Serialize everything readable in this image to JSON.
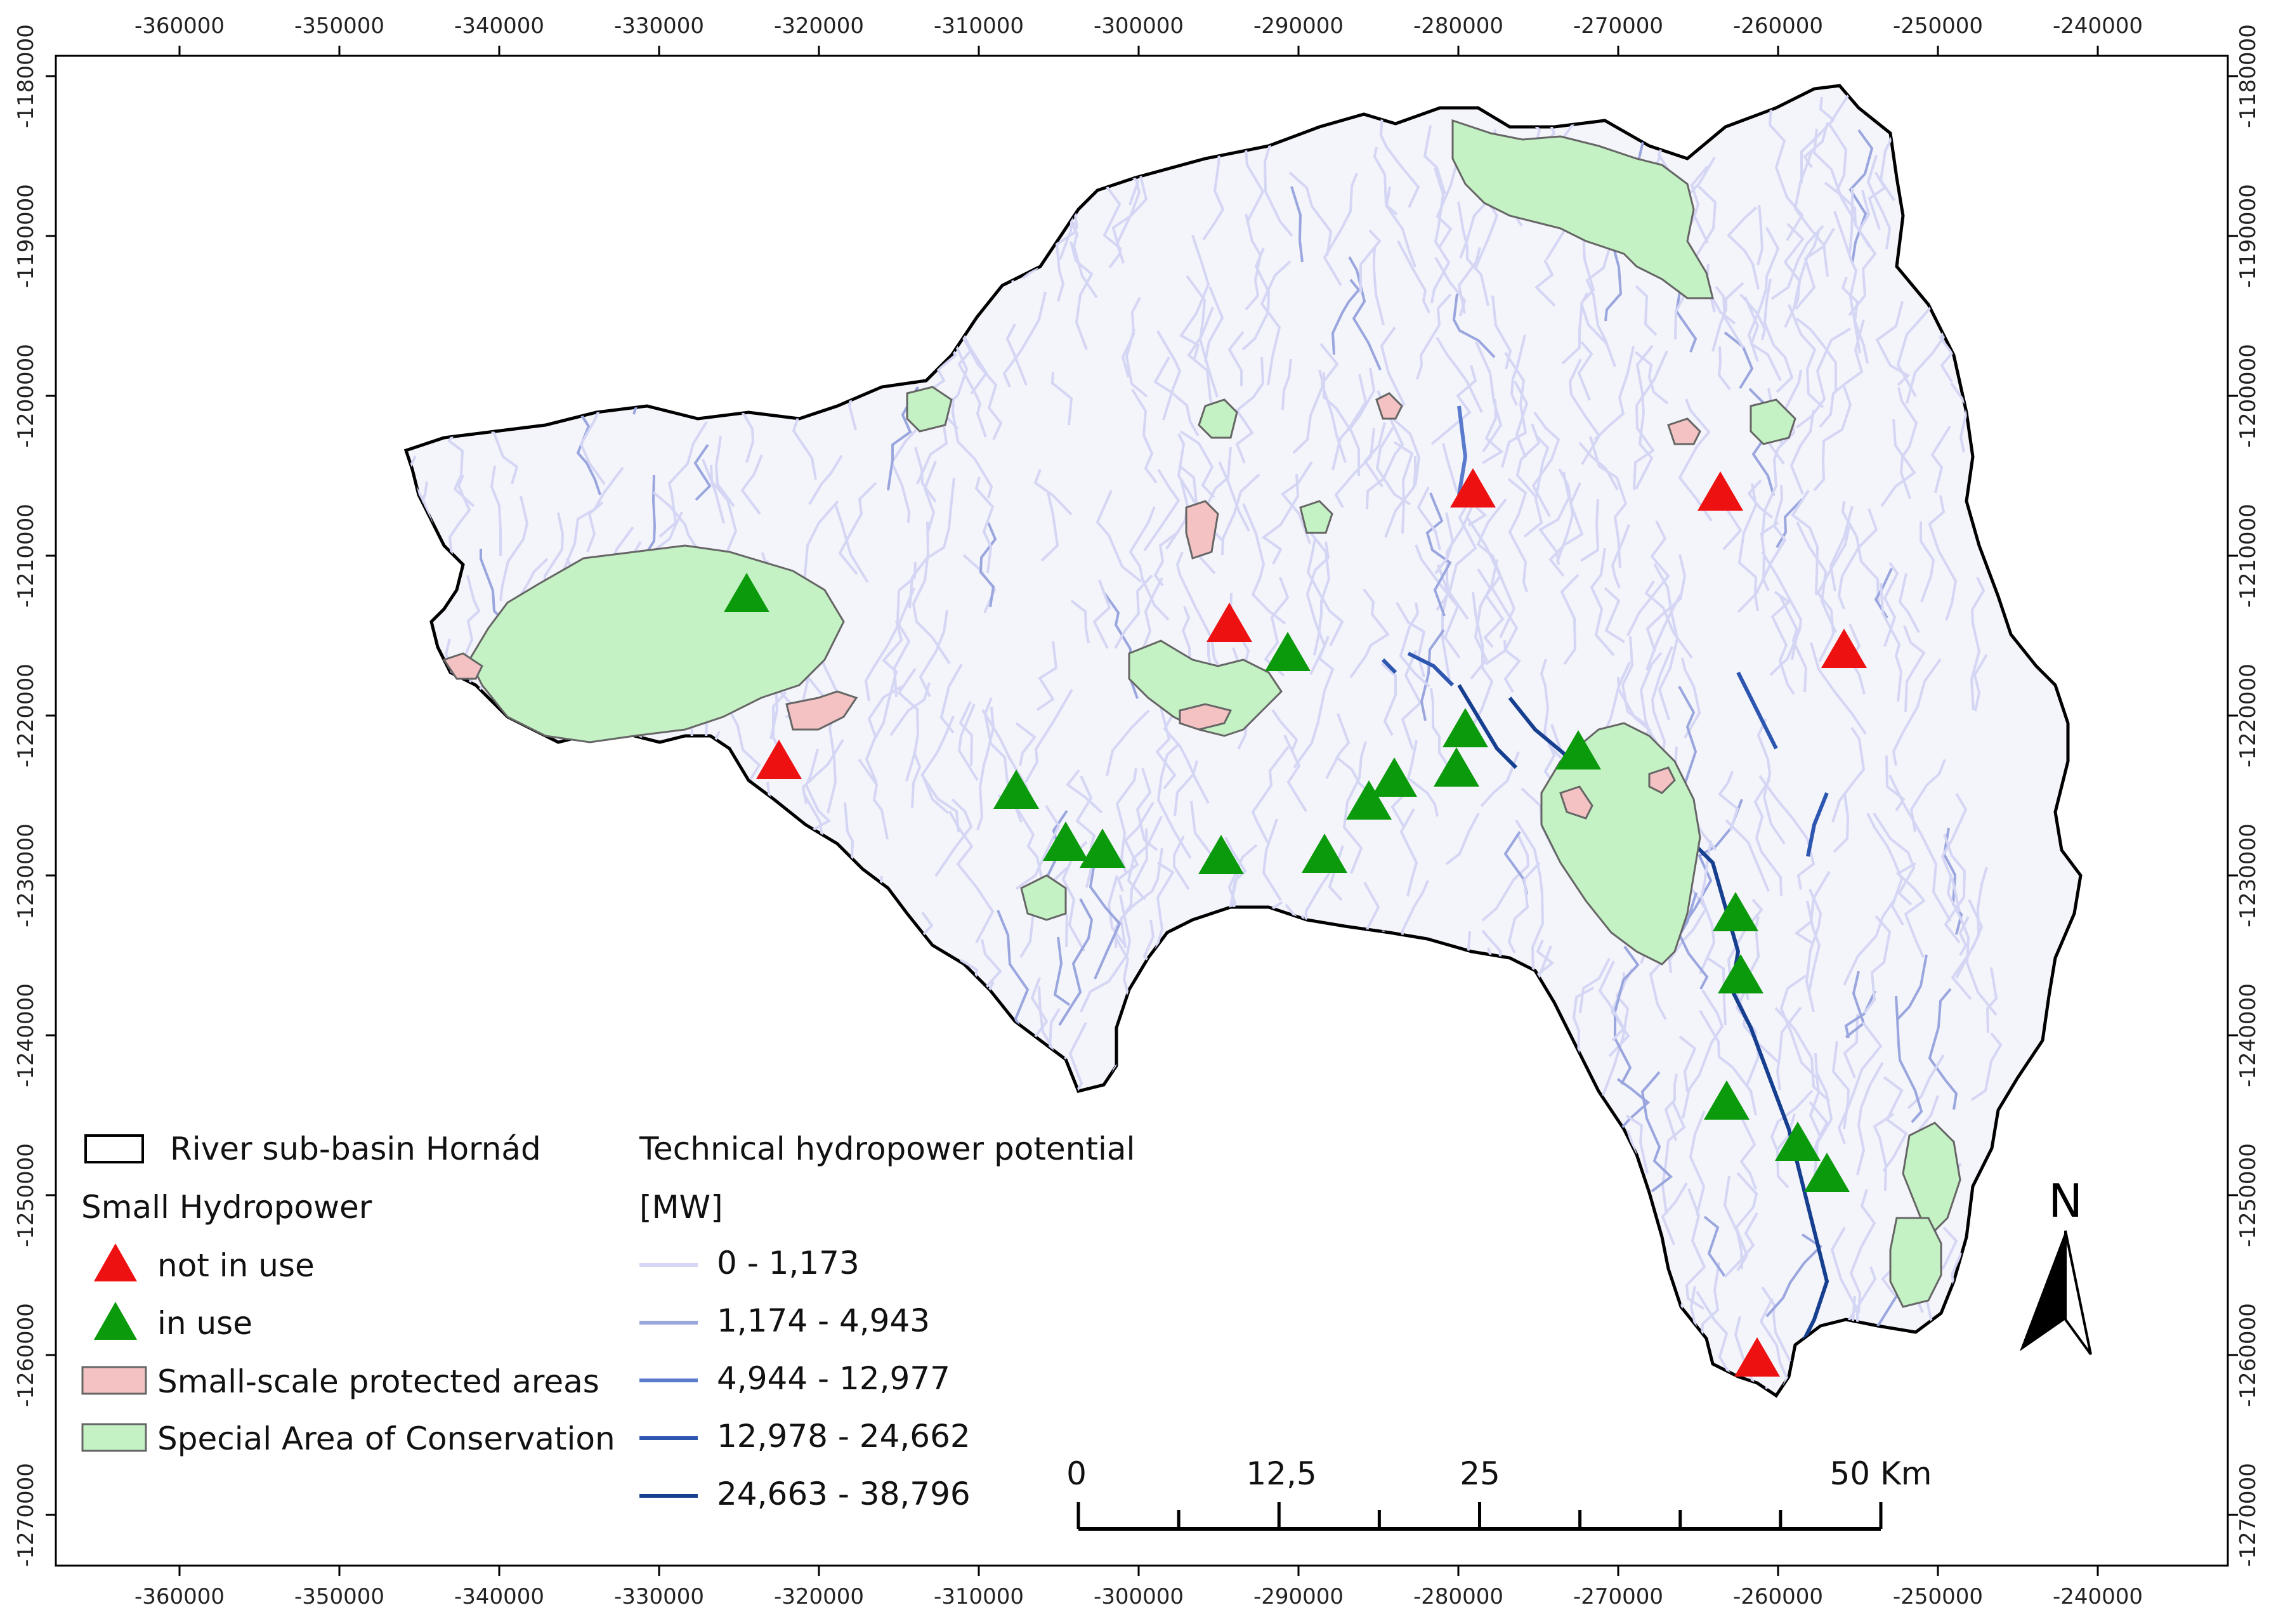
{
  "x_axis": {
    "tick_labels": [
      "-360000",
      "-350000",
      "-340000",
      "-330000",
      "-320000",
      "-310000",
      "-300000",
      "-290000",
      "-280000",
      "-270000",
      "-260000",
      "-250000",
      "-240000"
    ]
  },
  "y_axis": {
    "tick_labels": [
      "-1180000",
      "-1190000",
      "-1200000",
      "-1210000",
      "-1220000",
      "-1230000",
      "-1240000",
      "-1250000",
      "-1260000",
      "-1270000"
    ]
  },
  "legend": {
    "basin_label": "River sub-basin Hornád",
    "hydropower_heading": "Small Hydropower",
    "not_in_use_label": "not in use",
    "in_use_label": "in use",
    "protected_label": "Small-scale protected areas",
    "sac_label": "Special Area of Conservation",
    "potential_heading": "Technical hydropower potential",
    "potential_unit": "[MW]",
    "classes": [
      {
        "label": "0 - 1,173",
        "color": "#d4d6f4"
      },
      {
        "label": "1,174 - 4,943",
        "color": "#9aa6de"
      },
      {
        "label": "4,944 - 12,977",
        "color": "#5a7bcc"
      },
      {
        "label": "12,978 - 24,662",
        "color": "#2d56b0"
      },
      {
        "label": "24,663 - 38,796",
        "color": "#163f8f"
      }
    ]
  },
  "scale_bar": {
    "labels": [
      "0",
      "12,5",
      "25",
      "50 Km"
    ]
  },
  "north_arrow": {
    "label": "N"
  },
  "colors": {
    "not_in_use": "#ee1111",
    "in_use": "#0b9a0b",
    "protected_fill": "#f4c2c2",
    "sac_fill": "#c4f2c4",
    "basin_outline": "#000000",
    "river_light": "#d4d6f4"
  },
  "icons": {
    "not_in_use": "red-triangle-icon",
    "in_use": "green-triangle-icon",
    "north": "north-arrow-icon"
  }
}
